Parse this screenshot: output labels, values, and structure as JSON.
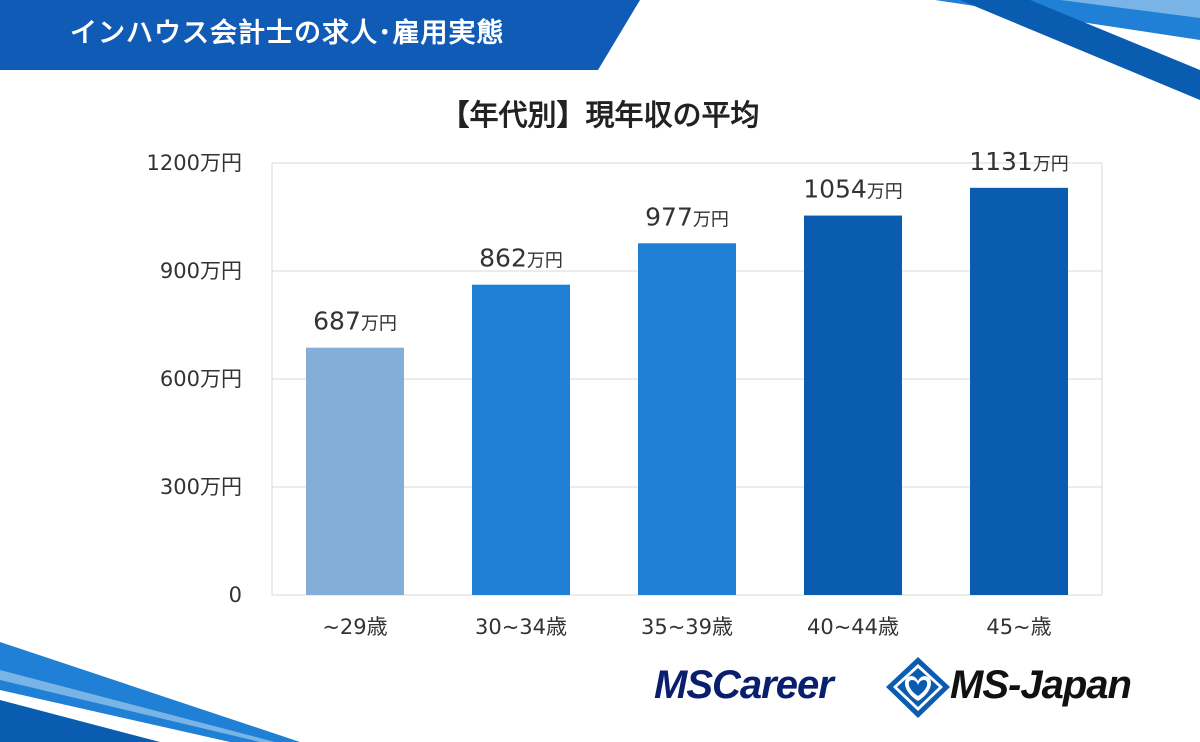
{
  "header": {
    "title": "インハウス会計士の求人･雇用実態"
  },
  "colors": {
    "banner": "#0f5bb5",
    "light_bar": "#82aed8",
    "mid_bar": "#1f80d6",
    "dark_bar": "#0a5cb0",
    "grid": "#d9d9d9"
  },
  "chart_data": {
    "type": "bar",
    "title": "【年代別】現年収の平均",
    "categories": [
      "~29歳",
      "30~34歳",
      "35~39歳",
      "40~44歳",
      "45~歳"
    ],
    "values": [
      687,
      862,
      977,
      1054,
      1131
    ],
    "unit": "万円",
    "data_labels": [
      "687",
      "862",
      "977",
      "1054",
      "1131"
    ],
    "bar_colors": [
      "#82aed8",
      "#1f80d6",
      "#1f80d6",
      "#0a5cb0",
      "#0a5cb0"
    ],
    "ylim": [
      0,
      1200
    ],
    "yticks": [
      0,
      300,
      600,
      900,
      1200
    ],
    "ytick_labels": [
      "0",
      "300万円",
      "600万円",
      "900万円",
      "1200万円"
    ],
    "grid": true,
    "xlabel": "",
    "ylabel": ""
  },
  "footer": {
    "logo_left": "MSCareer",
    "logo_right": "MS-Japan",
    "logo_mark": "ms-heart-diamond-icon"
  }
}
